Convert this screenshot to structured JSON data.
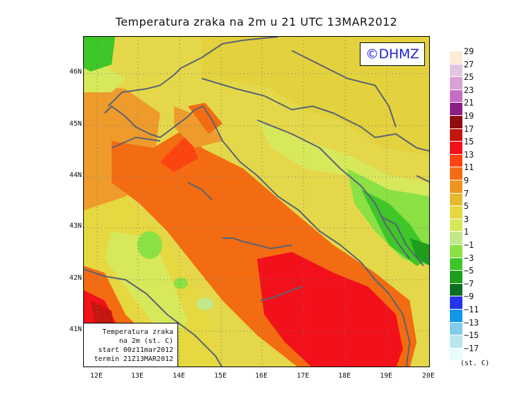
{
  "title": "Temperatura zraka na 2m u 21 UTC 13MAR2012",
  "copyright": "©DHMZ",
  "infobox": {
    "line1": "Temperatura zraka",
    "line2": "na 2m (st. C)",
    "line3": "start 00z11mar2012",
    "line4": "termin 21Z13MAR2012"
  },
  "lat_labels": [
    "46N",
    "45N",
    "44N",
    "43N",
    "42N",
    "41N"
  ],
  "lon_labels": [
    "12E",
    "13E",
    "14E",
    "15E",
    "16E",
    "17E",
    "18E",
    "19E",
    "20E"
  ],
  "legend": {
    "labels": [
      "29",
      "27",
      "25",
      "23",
      "21",
      "19",
      "17",
      "15",
      "13",
      "11",
      "9",
      "7",
      "5",
      "3",
      "1",
      "−1",
      "−3",
      "−5",
      "−7",
      "−9",
      "−11",
      "−13",
      "−15",
      "−17"
    ],
    "colors": [
      "#fbebd7",
      "#e2c6e0",
      "#dba0d6",
      "#c46ec4",
      "#8a1f86",
      "#8e0d0d",
      "#c2160e",
      "#f2101b",
      "#fb4410",
      "#f36c12",
      "#ed9320",
      "#e3b92d",
      "#e6d840",
      "#d8e85b",
      "#c1e98b",
      "#8be044",
      "#3fc628",
      "#1f9e1d",
      "#0e6e1f",
      "#2434e8",
      "#1496e6",
      "#7fcdea",
      "#b9e6ef",
      "#e8fbfd"
    ],
    "unit": "(st. C)"
  }
}
